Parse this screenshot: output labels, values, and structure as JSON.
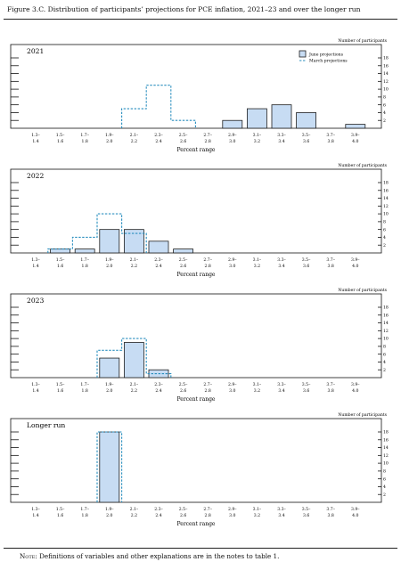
{
  "title": "Figure 3.C. Distribution of participants’ projections for PCE inflation, 2021–23 and over the longer run",
  "note": {
    "label": "Note:",
    "text": " Definitions of variables and other explanations are in the notes to table 1."
  },
  "chart_data": [
    {
      "type": "bar",
      "title": "2021",
      "ylabel": "Number of participants",
      "xlabel": "Percent range",
      "categories": [
        "1.3–1.4",
        "1.5–1.6",
        "1.7–1.8",
        "1.9–2.0",
        "2.1–2.2",
        "2.3–2.4",
        "2.5–2.6",
        "2.7–2.8",
        "2.9–3.0",
        "3.1–3.2",
        "3.3–3.4",
        "3.5–3.6",
        "3.7–3.8",
        "3.9–4.0"
      ],
      "cat_top": [
        "1.3–",
        "1.5–",
        "1.7–",
        "1.9–",
        "2.1–",
        "2.3–",
        "2.5–",
        "2.7–",
        "2.9–",
        "3.1–",
        "3.3–",
        "3.5–",
        "3.7–",
        "3.9–"
      ],
      "cat_bottom": [
        "1.4",
        "1.6",
        "1.8",
        "2.0",
        "2.2",
        "2.4",
        "2.6",
        "2.8",
        "3.0",
        "3.2",
        "3.4",
        "3.6",
        "3.8",
        "4.0"
      ],
      "yticks": [
        2,
        4,
        6,
        8,
        10,
        12,
        14,
        16,
        18
      ],
      "ylim": [
        0,
        18
      ],
      "legend": {
        "placement": "top-right",
        "entries": [
          "June projections",
          "March projections"
        ]
      },
      "series": [
        {
          "name": "June projections",
          "values": [
            0,
            0,
            0,
            0,
            0,
            0,
            0,
            0,
            2,
            5,
            6,
            4,
            0,
            1
          ]
        },
        {
          "name": "March projections",
          "values": [
            0,
            0,
            0,
            0,
            5,
            11,
            2,
            0,
            0,
            0,
            0,
            0,
            0,
            0
          ]
        }
      ]
    },
    {
      "type": "bar",
      "title": "2022",
      "ylabel": "Number of participants",
      "xlabel": "Percent range",
      "categories": [
        "1.3–1.4",
        "1.5–1.6",
        "1.7–1.8",
        "1.9–2.0",
        "2.1–2.2",
        "2.3–2.4",
        "2.5–2.6",
        "2.7–2.8",
        "2.9–3.0",
        "3.1–3.2",
        "3.3–3.4",
        "3.5–3.6",
        "3.7–3.8",
        "3.9–4.0"
      ],
      "cat_top": [
        "1.3–",
        "1.5–",
        "1.7–",
        "1.9–",
        "2.1–",
        "2.3–",
        "2.5–",
        "2.7–",
        "2.9–",
        "3.1–",
        "3.3–",
        "3.5–",
        "3.7–",
        "3.9–"
      ],
      "cat_bottom": [
        "1.4",
        "1.6",
        "1.8",
        "2.0",
        "2.2",
        "2.4",
        "2.6",
        "2.8",
        "3.0",
        "3.2",
        "3.4",
        "3.6",
        "3.8",
        "4.0"
      ],
      "yticks": [
        2,
        4,
        6,
        8,
        10,
        12,
        14,
        16,
        18
      ],
      "ylim": [
        0,
        18
      ],
      "series": [
        {
          "name": "June projections",
          "values": [
            0,
            1,
            1,
            6,
            6,
            3,
            1,
            0,
            0,
            0,
            0,
            0,
            0,
            0
          ]
        },
        {
          "name": "March projections",
          "values": [
            0,
            1,
            4,
            10,
            5,
            0,
            0,
            0,
            0,
            0,
            0,
            0,
            0,
            0
          ]
        }
      ]
    },
    {
      "type": "bar",
      "title": "2023",
      "ylabel": "Number of participants",
      "xlabel": "Percent range",
      "categories": [
        "1.3–1.4",
        "1.5–1.6",
        "1.7–1.8",
        "1.9–2.0",
        "2.1–2.2",
        "2.3–2.4",
        "2.5–2.6",
        "2.7–2.8",
        "2.9–3.0",
        "3.1–3.2",
        "3.3–3.4",
        "3.5–3.6",
        "3.7–3.8",
        "3.9–4.0"
      ],
      "cat_top": [
        "1.3–",
        "1.5–",
        "1.7–",
        "1.9–",
        "2.1–",
        "2.3–",
        "2.5–",
        "2.7–",
        "2.9–",
        "3.1–",
        "3.3–",
        "3.5–",
        "3.7–",
        "3.9–"
      ],
      "cat_bottom": [
        "1.4",
        "1.6",
        "1.8",
        "2.0",
        "2.2",
        "2.4",
        "2.6",
        "2.8",
        "3.0",
        "3.2",
        "3.4",
        "3.6",
        "3.8",
        "4.0"
      ],
      "yticks": [
        2,
        4,
        6,
        8,
        10,
        12,
        14,
        16,
        18
      ],
      "ylim": [
        0,
        18
      ],
      "series": [
        {
          "name": "June projections",
          "values": [
            0,
            0,
            0,
            5,
            9,
            2,
            0,
            0,
            0,
            0,
            0,
            0,
            0,
            0
          ]
        },
        {
          "name": "March projections",
          "values": [
            0,
            0,
            0,
            7,
            10,
            1,
            0,
            0,
            0,
            0,
            0,
            0,
            0,
            0
          ]
        }
      ]
    },
    {
      "type": "bar",
      "title": "Longer run",
      "ylabel": "Number of participants",
      "xlabel": "Percent range",
      "categories": [
        "1.3–1.4",
        "1.5–1.6",
        "1.7–1.8",
        "1.9–2.0",
        "2.1–2.2",
        "2.3–2.4",
        "2.5–2.6",
        "2.7–2.8",
        "2.9–3.0",
        "3.1–3.2",
        "3.3–3.4",
        "3.5–3.6",
        "3.7–3.8",
        "3.9–4.0"
      ],
      "cat_top": [
        "1.3–",
        "1.5–",
        "1.7–",
        "1.9–",
        "2.1–",
        "2.3–",
        "2.5–",
        "2.7–",
        "2.9–",
        "3.1–",
        "3.3–",
        "3.5–",
        "3.7–",
        "3.9–"
      ],
      "cat_bottom": [
        "1.4",
        "1.6",
        "1.8",
        "2.0",
        "2.2",
        "2.4",
        "2.6",
        "2.8",
        "3.0",
        "3.2",
        "3.4",
        "3.6",
        "3.8",
        "4.0"
      ],
      "yticks": [
        2,
        4,
        6,
        8,
        10,
        12,
        14,
        16,
        18
      ],
      "ylim": [
        0,
        18
      ],
      "series": [
        {
          "name": "June projections",
          "values": [
            0,
            0,
            0,
            18,
            0,
            0,
            0,
            0,
            0,
            0,
            0,
            0,
            0,
            0
          ]
        },
        {
          "name": "March projections",
          "values": [
            0,
            0,
            0,
            18,
            0,
            0,
            0,
            0,
            0,
            0,
            0,
            0,
            0,
            0
          ]
        }
      ]
    }
  ],
  "colors": {
    "june_fill": "#c7dcf3",
    "june_stroke": "#1f1f1f",
    "march_stroke": "#2b8fbf",
    "axis": "#111111"
  }
}
